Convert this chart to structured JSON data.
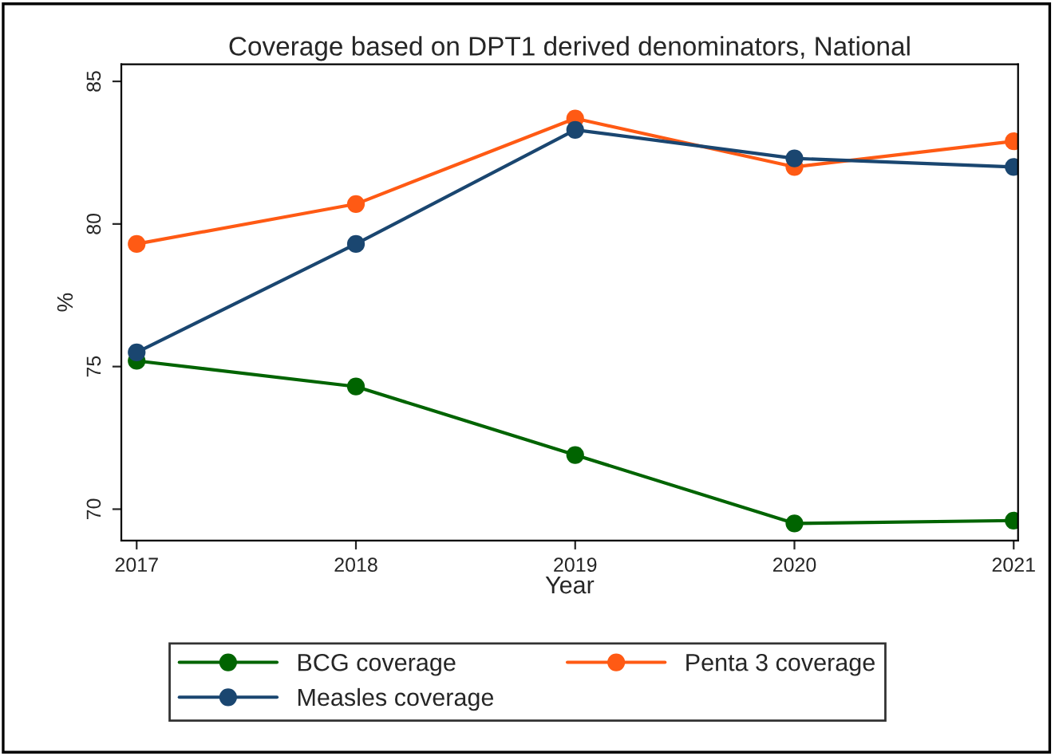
{
  "chart_data": {
    "type": "line",
    "title": "Coverage based on DPT1 derived denominators, National",
    "xlabel": "Year",
    "ylabel": "%",
    "x": [
      2017,
      2018,
      2019,
      2020,
      2021
    ],
    "series": [
      {
        "name": "BCG coverage",
        "color": "#006400",
        "values": [
          75.2,
          74.3,
          71.9,
          69.5,
          69.6
        ]
      },
      {
        "name": "Penta 3 coverage",
        "color": "#ff5a14",
        "values": [
          79.3,
          80.7,
          83.7,
          82.0,
          82.9
        ]
      },
      {
        "name": "Measles coverage",
        "color": "#1a4670",
        "values": [
          75.5,
          79.3,
          83.3,
          82.3,
          82.0
        ]
      }
    ],
    "xlim": [
      2016.93,
      2021.02
    ],
    "ylim": [
      68.9,
      85.6
    ],
    "xticks": [
      2017,
      2018,
      2019,
      2020,
      2021
    ],
    "yticks": [
      70,
      75,
      80,
      85
    ],
    "grid": false,
    "legend": "bottom",
    "marker": "circle",
    "line_style": "solid"
  }
}
